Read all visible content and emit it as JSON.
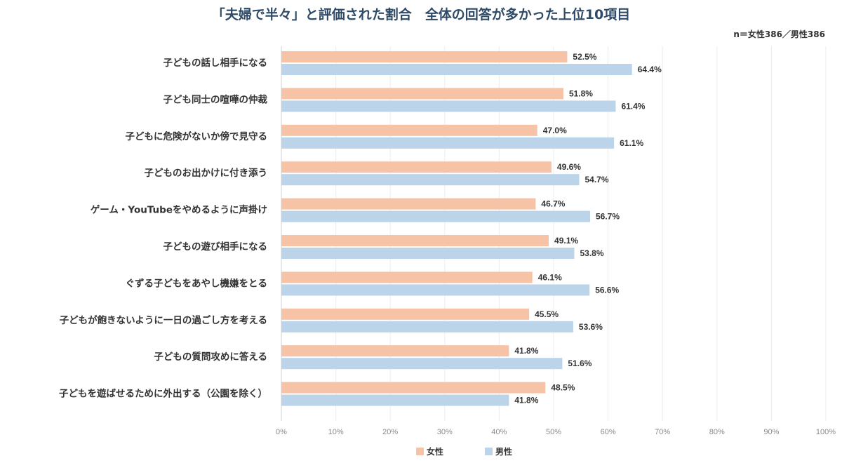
{
  "title": "「夫婦で半々」と評価された割合　全体の回答が多かった上位10項目",
  "note": "n＝女性386／男性386",
  "chart_data": {
    "type": "bar",
    "orientation": "horizontal",
    "title": "「夫婦で半々」と評価された割合　全体の回答が多かった上位10項目",
    "categories": [
      "子どもの話し相手になる",
      "子ども同士の喧嘩の仲裁",
      "子どもに危険がないか傍で見守る",
      "子どものお出かけに付き添う",
      "ゲーム・YouTubeをやめるように声掛け",
      "子どもの遊び相手になる",
      "ぐずる子どもをあやし機嫌をとる",
      "子どもが飽きないように一日の過ごし方を考える",
      "子どもの質問攻めに答える",
      "子どもを遊ばせるために外出する（公園を除く）"
    ],
    "series": [
      {
        "name": "女性",
        "color": "#f6c3a7",
        "values": [
          52.5,
          51.8,
          47.0,
          49.6,
          46.7,
          49.1,
          46.1,
          45.5,
          41.8,
          48.5
        ]
      },
      {
        "name": "男性",
        "color": "#bcd4ea",
        "values": [
          64.4,
          61.4,
          61.1,
          54.7,
          56.7,
          53.8,
          56.6,
          53.6,
          51.6,
          41.8
        ]
      }
    ],
    "value_suffix": "%",
    "xlim": [
      0,
      100
    ],
    "ticks": [
      "0%",
      "10%",
      "20%",
      "30%",
      "40%",
      "50%",
      "60%",
      "70%",
      "80%",
      "90%",
      "100%"
    ],
    "grid": true,
    "legend_position": "bottom"
  }
}
